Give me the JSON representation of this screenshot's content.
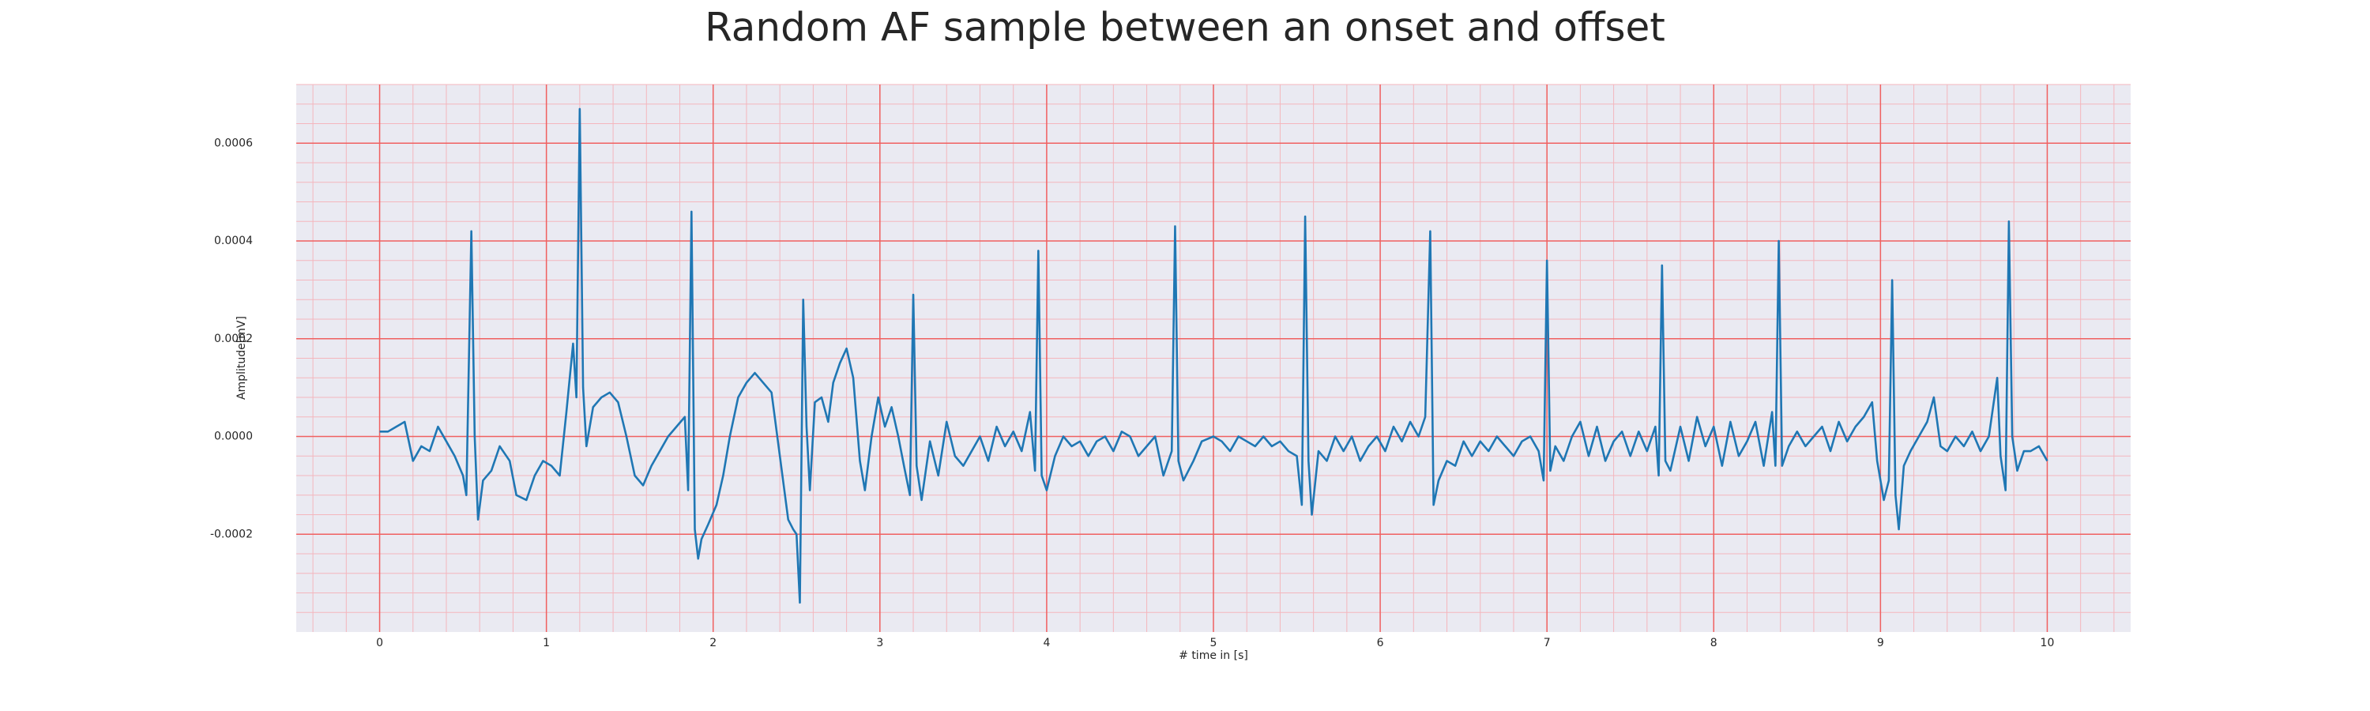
{
  "chart_data": {
    "type": "line",
    "title": "Random AF sample between an onset and offset",
    "xlabel": "# time in [s]",
    "ylabel": "Amplitude[mV]",
    "color": "#1f77b4",
    "grid": true,
    "minor_grid": true,
    "xlim": [
      -0.5,
      10.5
    ],
    "ylim": [
      -0.0004,
      0.00072
    ],
    "xticks": [
      0,
      1,
      2,
      3,
      4,
      5,
      6,
      7,
      8,
      9,
      10
    ],
    "yticks": [
      -0.0002,
      {
        "value": 0,
        "label": "0.0000"
      },
      0.0002,
      0.0004,
      0.0006
    ],
    "x": [
      0,
      0.05,
      0.1,
      0.15,
      0.2,
      0.25,
      0.3,
      0.35,
      0.4,
      0.45,
      0.5,
      0.52,
      0.55,
      0.57,
      0.59,
      0.62,
      0.67,
      0.72,
      0.78,
      0.82,
      0.88,
      0.93,
      0.98,
      1.03,
      1.08,
      1.12,
      1.16,
      1.18,
      1.2,
      1.22,
      1.24,
      1.28,
      1.33,
      1.38,
      1.43,
      1.48,
      1.53,
      1.58,
      1.63,
      1.68,
      1.73,
      1.78,
      1.83,
      1.85,
      1.87,
      1.89,
      1.91,
      1.93,
      1.97,
      2.02,
      2.06,
      2.1,
      2.15,
      2.2,
      2.25,
      2.3,
      2.35,
      2.4,
      2.45,
      2.48,
      2.5,
      2.52,
      2.54,
      2.56,
      2.58,
      2.61,
      2.65,
      2.69,
      2.72,
      2.76,
      2.8,
      2.84,
      2.88,
      2.91,
      2.95,
      2.99,
      3.03,
      3.07,
      3.11,
      3.15,
      3.18,
      3.2,
      3.22,
      3.25,
      3.3,
      3.35,
      3.4,
      3.45,
      3.5,
      3.55,
      3.6,
      3.65,
      3.7,
      3.75,
      3.8,
      3.85,
      3.9,
      3.93,
      3.95,
      3.97,
      4.0,
      4.05,
      4.1,
      4.15,
      4.2,
      4.25,
      4.3,
      4.35,
      4.4,
      4.45,
      4.5,
      4.55,
      4.6,
      4.65,
      4.7,
      4.75,
      4.77,
      4.79,
      4.82,
      4.88,
      4.93,
      5.0,
      5.05,
      5.1,
      5.15,
      5.2,
      5.25,
      5.3,
      5.35,
      5.4,
      5.45,
      5.5,
      5.53,
      5.55,
      5.57,
      5.59,
      5.63,
      5.68,
      5.73,
      5.78,
      5.83,
      5.88,
      5.93,
      5.98,
      6.03,
      6.08,
      6.13,
      6.18,
      6.23,
      6.27,
      6.3,
      6.32,
      6.35,
      6.4,
      6.45,
      6.5,
      6.55,
      6.6,
      6.65,
      6.7,
      6.75,
      6.8,
      6.85,
      6.9,
      6.95,
      6.98,
      7.0,
      7.02,
      7.05,
      7.1,
      7.15,
      7.2,
      7.25,
      7.3,
      7.35,
      7.4,
      7.45,
      7.5,
      7.55,
      7.6,
      7.65,
      7.67,
      7.69,
      7.71,
      7.74,
      7.8,
      7.85,
      7.9,
      7.95,
      8.0,
      8.05,
      8.1,
      8.15,
      8.2,
      8.25,
      8.3,
      8.35,
      8.37,
      8.39,
      8.41,
      8.45,
      8.5,
      8.55,
      8.6,
      8.65,
      8.7,
      8.75,
      8.8,
      8.85,
      8.9,
      8.95,
      8.98,
      9.02,
      9.05,
      9.07,
      9.09,
      9.11,
      9.14,
      9.18,
      9.23,
      9.28,
      9.32,
      9.36,
      9.4,
      9.45,
      9.5,
      9.55,
      9.6,
      9.65,
      9.7,
      9.72,
      9.75,
      9.77,
      9.79,
      9.82,
      9.86,
      9.9,
      9.95,
      10.0
    ],
    "values": [
      1e-05,
      1e-05,
      2e-05,
      3e-05,
      -5e-05,
      -2e-05,
      -3e-05,
      2e-05,
      -1e-05,
      -4e-05,
      -8e-05,
      -0.00012,
      0.00042,
      0.0,
      -0.00017,
      -9e-05,
      -7e-05,
      -2e-05,
      -5e-05,
      -0.00012,
      -0.00013,
      -8e-05,
      -5e-05,
      -6e-05,
      -8e-05,
      5e-05,
      0.00019,
      8e-05,
      0.00067,
      0.0001,
      -2e-05,
      6e-05,
      8e-05,
      9e-05,
      7e-05,
      0.0,
      -8e-05,
      -0.0001,
      -6e-05,
      -3e-05,
      0.0,
      2e-05,
      4e-05,
      -0.00011,
      0.00046,
      -0.00019,
      -0.00025,
      -0.00021,
      -0.00018,
      -0.00014,
      -8e-05,
      0.0,
      8e-05,
      0.00011,
      0.00013,
      0.00011,
      9e-05,
      -4e-05,
      -0.00017,
      -0.00019,
      -0.0002,
      -0.00034,
      0.00028,
      2e-05,
      -0.00011,
      7e-05,
      8e-05,
      3e-05,
      0.00011,
      0.00015,
      0.00018,
      0.00012,
      -5e-05,
      -0.00011,
      0.0,
      8e-05,
      2e-05,
      6e-05,
      0.0,
      -7e-05,
      -0.00012,
      0.00029,
      -6e-05,
      -0.00013,
      -1e-05,
      -8e-05,
      3e-05,
      -4e-05,
      -6e-05,
      -3e-05,
      0.0,
      -5e-05,
      2e-05,
      -2e-05,
      1e-05,
      -3e-05,
      5e-05,
      -7e-05,
      0.00038,
      -8e-05,
      -0.00011,
      -4e-05,
      0.0,
      -2e-05,
      -1e-05,
      -4e-05,
      -1e-05,
      0.0,
      -3e-05,
      1e-05,
      0.0,
      -4e-05,
      -2e-05,
      0.0,
      -8e-05,
      -3e-05,
      0.00043,
      -5e-05,
      -9e-05,
      -5e-05,
      -1e-05,
      0.0,
      -1e-05,
      -3e-05,
      0.0,
      -1e-05,
      -2e-05,
      0.0,
      -2e-05,
      -1e-05,
      -3e-05,
      -4e-05,
      -0.00014,
      0.00045,
      -5e-05,
      -0.00016,
      -3e-05,
      -5e-05,
      0.0,
      -3e-05,
      0.0,
      -5e-05,
      -2e-05,
      0.0,
      -3e-05,
      2e-05,
      -1e-05,
      3e-05,
      0.0,
      4e-05,
      0.00042,
      -0.00014,
      -9e-05,
      -5e-05,
      -6e-05,
      -1e-05,
      -4e-05,
      -1e-05,
      -3e-05,
      0.0,
      -2e-05,
      -4e-05,
      -1e-05,
      0.0,
      -3e-05,
      -9e-05,
      0.00036,
      -7e-05,
      -2e-05,
      -5e-05,
      0.0,
      3e-05,
      -4e-05,
      2e-05,
      -5e-05,
      -1e-05,
      1e-05,
      -4e-05,
      1e-05,
      -3e-05,
      2e-05,
      -8e-05,
      0.00035,
      -5e-05,
      -7e-05,
      2e-05,
      -5e-05,
      4e-05,
      -2e-05,
      2e-05,
      -6e-05,
      3e-05,
      -4e-05,
      -1e-05,
      3e-05,
      -6e-05,
      5e-05,
      -6e-05,
      0.0004,
      -6e-05,
      -2e-05,
      1e-05,
      -2e-05,
      0.0,
      2e-05,
      -3e-05,
      3e-05,
      -1e-05,
      2e-05,
      4e-05,
      7e-05,
      -5e-05,
      -0.00013,
      -9e-05,
      0.00032,
      -0.00012,
      -0.00019,
      -6e-05,
      -3e-05,
      0.0,
      3e-05,
      8e-05,
      -2e-05,
      -3e-05,
      0.0,
      -2e-05,
      1e-05,
      -3e-05,
      0.0,
      0.00012,
      -4e-05,
      -0.00011,
      0.00044,
      0.0,
      -7e-05,
      -3e-05,
      -3e-05,
      -2e-05,
      -5e-05
    ]
  }
}
